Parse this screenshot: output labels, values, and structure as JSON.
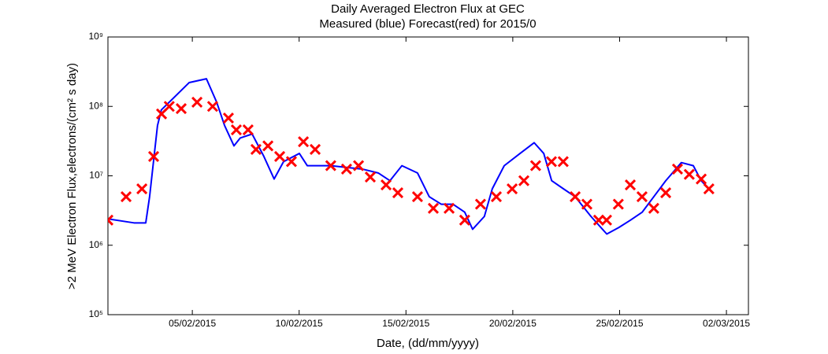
{
  "chart_data": {
    "type": "line",
    "title": "Daily Averaged Electron Flux at GEC",
    "subtitle": "Measured (blue) Forecast(red) for 2015/0",
    "x_label": "Date, (dd/mm/yyyy)",
    "y_label": ">2 MeV Electron Flux,electrons/(cm² s day)",
    "log_y": true,
    "grid": false,
    "xlim": [
      1.05,
      31.03
    ],
    "xticks": [
      {
        "value": 5,
        "label": "05/02/2015"
      },
      {
        "value": 10,
        "label": "10/02/2015"
      },
      {
        "value": 15,
        "label": "15/02/2015"
      },
      {
        "value": 20,
        "label": "20/02/2015"
      },
      {
        "value": 25,
        "label": "25/02/2015"
      },
      {
        "value": 30,
        "label": "02/03/2015"
      }
    ],
    "ylim": [
      100000,
      1000000000
    ],
    "yticks": [
      {
        "value": 100000,
        "label": "10⁵"
      },
      {
        "value": 1000000,
        "label": "10⁶"
      },
      {
        "value": 10000000,
        "label": "10⁷"
      },
      {
        "value": 100000000,
        "label": "10⁸"
      },
      {
        "value": 1000000000,
        "label": "10⁹"
      }
    ],
    "series": [
      {
        "color": "#0000ff",
        "marker": "line",
        "x": [
          1.05,
          2.27,
          2.82,
          3.0,
          3.37,
          3.55,
          3.92,
          4.85,
          5.66,
          6.14,
          6.51,
          6.95,
          7.24,
          7.8,
          8.35,
          8.83,
          9.27,
          10.01,
          10.38,
          11.48,
          12.96,
          13.7,
          14.25,
          14.81,
          15.54,
          16.09,
          16.65,
          17.2,
          17.75,
          18.12,
          18.67,
          19.04,
          19.6,
          20.34,
          21.0,
          21.45,
          21.82,
          22.37,
          22.92,
          23.66,
          24.4,
          24.96,
          25.51,
          26.06,
          26.6,
          27.16,
          27.89,
          28.45,
          28.82,
          29.18
        ],
        "values": [
          2400000,
          2100000,
          2100000,
          5000000,
          53000000,
          89000000,
          115000000,
          220000000,
          250000000,
          115000000,
          53000000,
          27000000,
          35000000,
          40000000,
          19000000,
          9000000,
          16000000,
          21000000,
          14000000,
          14000000,
          12500000,
          11000000,
          8500000,
          14000000,
          11000000,
          5000000,
          3900000,
          3900000,
          3000000,
          1700000,
          2600000,
          6500000,
          14000000,
          21000000,
          30000000,
          21000000,
          8500000,
          6500000,
          5000000,
          2600000,
          1450000,
          1800000,
          2300000,
          3000000,
          5000000,
          8500000,
          15500000,
          14000000,
          8500000,
          6500000
        ]
      },
      {
        "color": "#ff0000",
        "marker": "x",
        "x": [
          1.05,
          1.9,
          2.64,
          3.19,
          3.56,
          3.92,
          4.48,
          5.22,
          5.95,
          6.69,
          7.06,
          7.61,
          7.98,
          8.54,
          9.09,
          9.64,
          10.2,
          10.75,
          11.48,
          12.22,
          12.78,
          13.33,
          14.07,
          14.62,
          15.54,
          16.28,
          17.02,
          17.75,
          18.49,
          19.23,
          19.97,
          20.52,
          21.07,
          21.81,
          22.36,
          22.92,
          23.47,
          24.02,
          24.39,
          24.94,
          25.5,
          26.05,
          26.6,
          27.16,
          27.71,
          28.26,
          28.82,
          29.18
        ],
        "values": [
          2300000,
          5000000,
          6500000,
          19000000,
          78000000,
          100000000,
          93000000,
          115000000,
          100000000,
          68000000,
          46000000,
          46000000,
          24000000,
          27000000,
          19000000,
          16000000,
          31000000,
          24000000,
          14000000,
          12500000,
          14000000,
          9600000,
          7400000,
          5700000,
          5000000,
          3400000,
          3400000,
          2300000,
          3900000,
          5000000,
          6500000,
          8500000,
          14000000,
          16000000,
          16000000,
          5000000,
          3900000,
          2300000,
          2300000,
          3900000,
          7400000,
          5000000,
          3400000,
          5700000,
          12500000,
          10500000,
          9000000,
          6500000
        ]
      }
    ]
  }
}
